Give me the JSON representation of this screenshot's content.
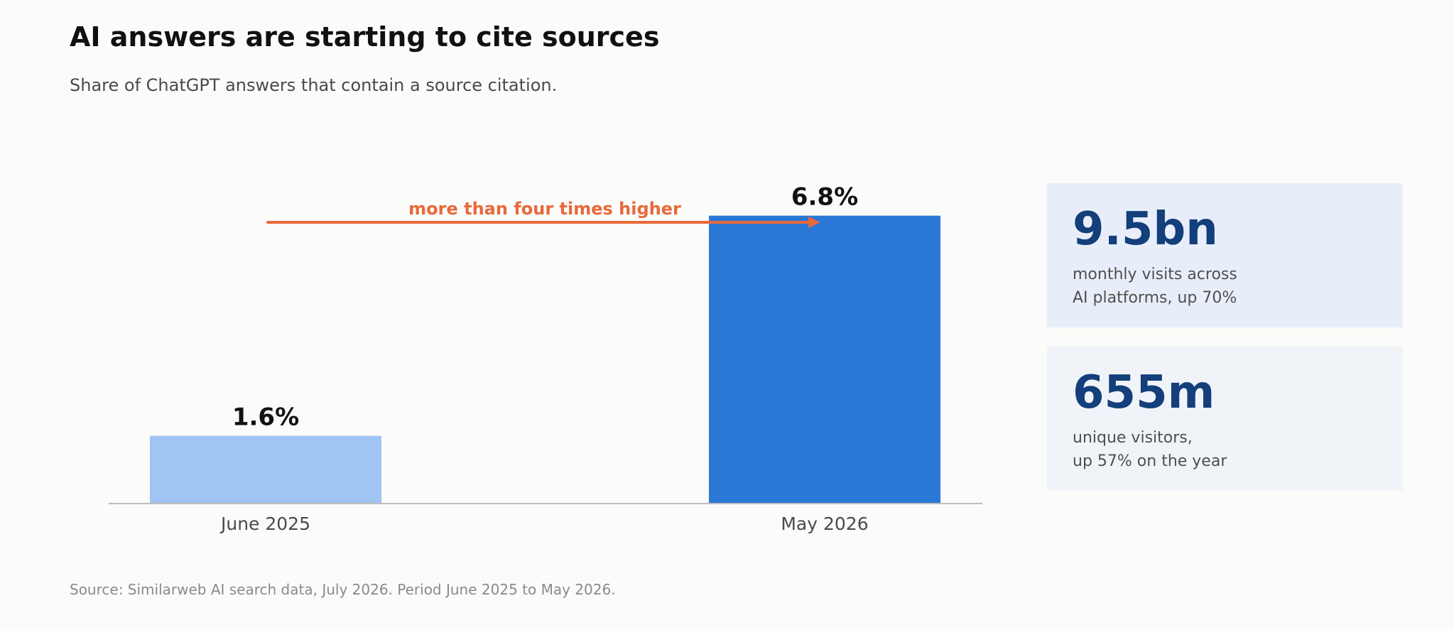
{
  "header": {
    "title": "AI answers are starting to cite sources",
    "subtitle": "Share of ChatGPT answers that contain a source citation."
  },
  "chart_data": {
    "type": "bar",
    "categories": [
      "June 2025",
      "May 2026"
    ],
    "values": [
      1.6,
      6.8
    ],
    "value_labels": [
      "1.6%",
      "6.8%"
    ],
    "bar_colors": [
      "#a0c4f3",
      "#2a78d6"
    ],
    "title": "",
    "xlabel": "",
    "ylabel": "",
    "ylim": [
      0,
      7.7
    ],
    "grid": false,
    "annotation": {
      "text": "more than four times higher",
      "color": "#e8693a",
      "from_category": "June 2025",
      "to_category": "May 2026"
    }
  },
  "stats": [
    {
      "value": "9.5bn",
      "label_lines": [
        "monthly visits across",
        "AI platforms, up 70%"
      ]
    },
    {
      "value": "655m",
      "label_lines": [
        "unique visitors,",
        "up 57% on the year"
      ]
    }
  ],
  "footer": {
    "source": "Source: Similarweb AI search data, July 2026. Period June 2025 to May 2026."
  },
  "colors": {
    "accent": "#e8693a",
    "stat_value": "#133f7a",
    "axis": "#bdbdbd"
  }
}
